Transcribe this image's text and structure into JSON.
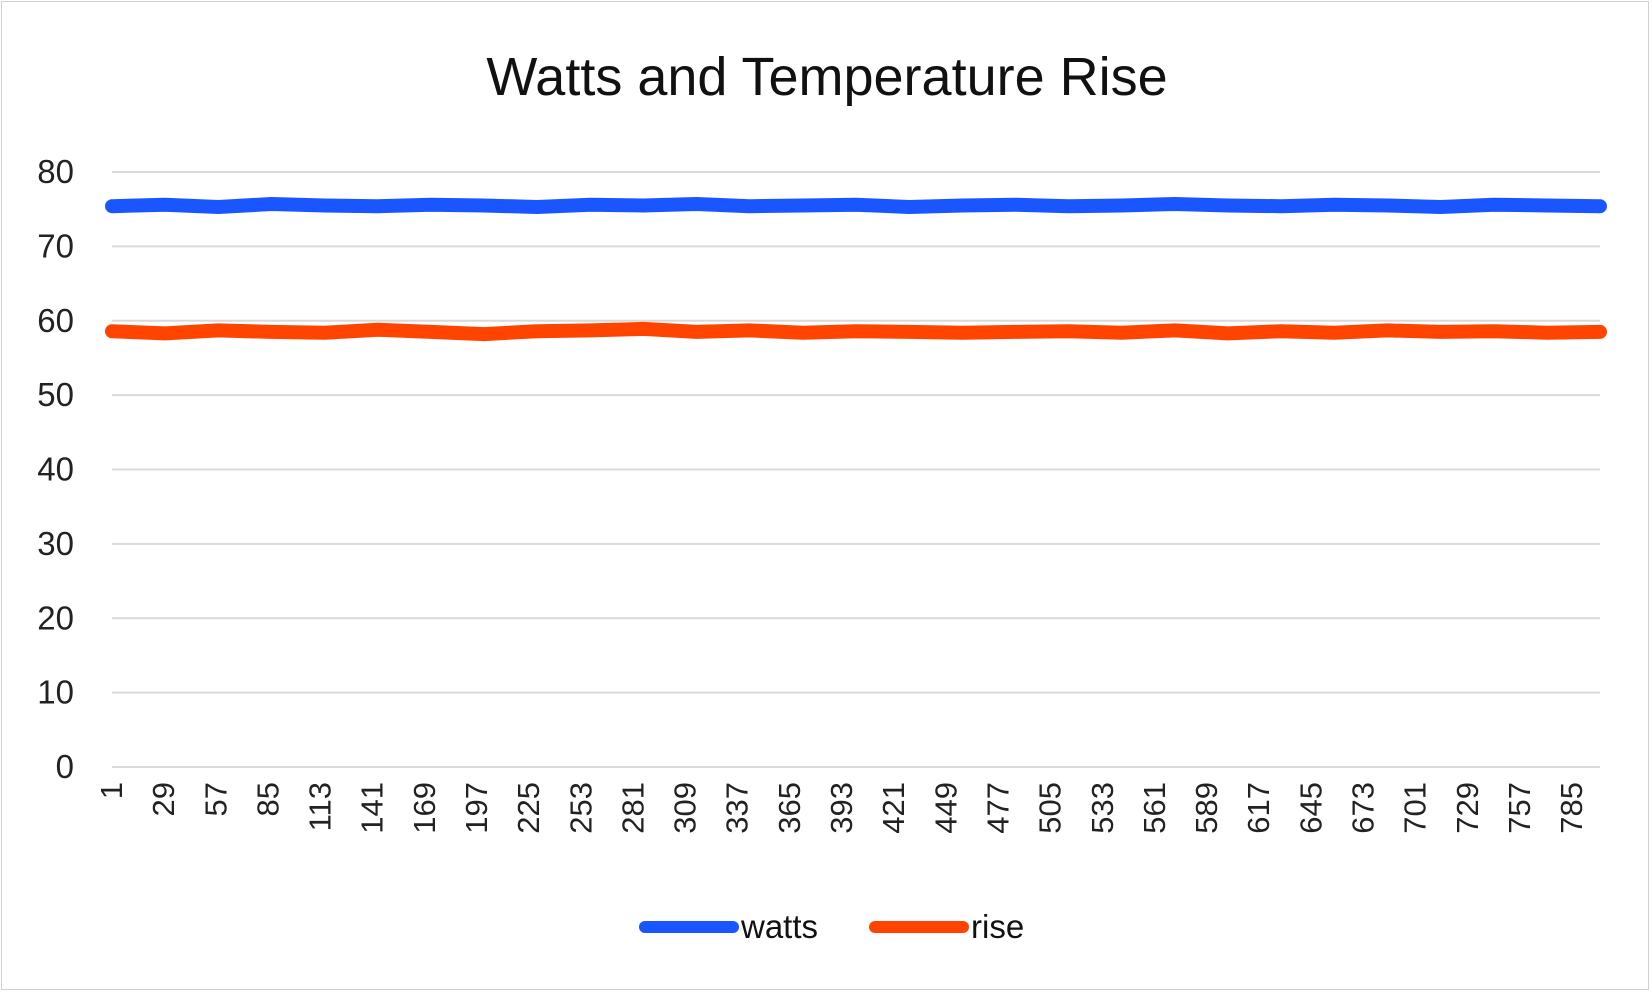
{
  "chart_data": {
    "type": "line",
    "title": "Watts and Temperature Rise",
    "xlabel": "",
    "ylabel": "",
    "x_range": [
      1,
      800
    ],
    "x_ticks": [
      1,
      29,
      57,
      85,
      113,
      141,
      169,
      197,
      225,
      253,
      281,
      309,
      337,
      365,
      393,
      421,
      449,
      477,
      505,
      533,
      561,
      589,
      617,
      645,
      673,
      701,
      729,
      757,
      785
    ],
    "ylim": [
      0,
      80
    ],
    "y_ticks": [
      0,
      10,
      20,
      30,
      40,
      50,
      60,
      70,
      80
    ],
    "grid": true,
    "legend_position": "bottom",
    "series": [
      {
        "name": "watts",
        "color": "#1a56ff",
        "values": [
          75.4,
          75.6,
          75.3,
          75.7,
          75.5,
          75.4,
          75.6,
          75.5,
          75.3,
          75.6,
          75.5,
          75.7,
          75.4,
          75.5,
          75.6,
          75.3,
          75.5,
          75.6,
          75.4,
          75.5,
          75.7,
          75.5,
          75.4,
          75.6,
          75.5,
          75.3,
          75.6,
          75.5,
          75.4
        ]
      },
      {
        "name": "rise",
        "color": "#ff4400",
        "values": [
          58.6,
          58.3,
          58.7,
          58.5,
          58.4,
          58.8,
          58.5,
          58.2,
          58.6,
          58.7,
          58.9,
          58.5,
          58.7,
          58.4,
          58.6,
          58.5,
          58.4,
          58.5,
          58.6,
          58.4,
          58.7,
          58.3,
          58.6,
          58.4,
          58.7,
          58.5,
          58.6,
          58.4,
          58.5
        ]
      }
    ]
  }
}
